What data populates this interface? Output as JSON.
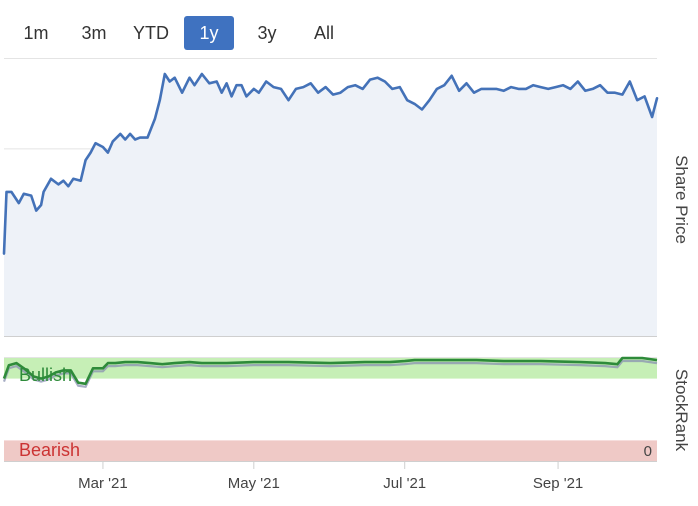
{
  "range_selector": {
    "buttons": [
      "1m",
      "3m",
      "YTD",
      "1y",
      "3y",
      "All"
    ],
    "selected": "1y"
  },
  "colors": {
    "price_line": "#4472b8",
    "price_fill": "#eef2f8",
    "stockrank_line": "#2e8b3a",
    "stockrank_shadow": "#8892b0",
    "bullish_band": "#c6efb6",
    "bearish_band": "#efc9c6",
    "bullish_text": "#2e8b3a",
    "bearish_text": "#cc3333",
    "active_tab": "#3f72c0"
  },
  "chart_data": [
    {
      "type": "area",
      "x_type": "date",
      "x_range": [
        "2021-01-20",
        "2021-10-11"
      ],
      "x_tick_labels": [
        "Mar '21",
        "May '21",
        "Jul '21",
        "Sep '21"
      ],
      "x_ticks": [
        "2021-03-01",
        "2021-05-01",
        "2021-07-01",
        "2021-09-01"
      ],
      "ylabel": "Share Price",
      "ylim": [
        0,
        74
      ],
      "yticks": [
        0,
        25,
        50
      ],
      "y_axis_side": "right",
      "grid": true,
      "series": [
        {
          "x": [
            "2021-01-20",
            "2021-01-21",
            "2021-01-23",
            "2021-01-26",
            "2021-01-28",
            "2021-01-31",
            "2021-02-02",
            "2021-02-04",
            "2021-02-05",
            "2021-02-08",
            "2021-02-11",
            "2021-02-13",
            "2021-02-15",
            "2021-02-17",
            "2021-02-20",
            "2021-02-22",
            "2021-02-24",
            "2021-02-26",
            "2021-03-01",
            "2021-03-03",
            "2021-03-05",
            "2021-03-08",
            "2021-03-10",
            "2021-03-12",
            "2021-03-14",
            "2021-03-16",
            "2021-03-19",
            "2021-03-22",
            "2021-03-24",
            "2021-03-26",
            "2021-03-28",
            "2021-03-30",
            "2021-04-02",
            "2021-04-05",
            "2021-04-07",
            "2021-04-10",
            "2021-04-13",
            "2021-04-16",
            "2021-04-18",
            "2021-04-20",
            "2021-04-22",
            "2021-04-24",
            "2021-04-26",
            "2021-04-28",
            "2021-05-01",
            "2021-05-03",
            "2021-05-06",
            "2021-05-09",
            "2021-05-12",
            "2021-05-15",
            "2021-05-18",
            "2021-05-21",
            "2021-05-24",
            "2021-05-27",
            "2021-05-30",
            "2021-06-02",
            "2021-06-05",
            "2021-06-08",
            "2021-06-11",
            "2021-06-14",
            "2021-06-17",
            "2021-06-20",
            "2021-06-23",
            "2021-06-26",
            "2021-06-29",
            "2021-07-02",
            "2021-07-05",
            "2021-07-08",
            "2021-07-11",
            "2021-07-14",
            "2021-07-17",
            "2021-07-20",
            "2021-07-23",
            "2021-07-26",
            "2021-07-29",
            "2021-08-01",
            "2021-08-04",
            "2021-08-07",
            "2021-08-10",
            "2021-08-13",
            "2021-08-16",
            "2021-08-19",
            "2021-08-22",
            "2021-08-25",
            "2021-08-28",
            "2021-08-31",
            "2021-09-03",
            "2021-09-06",
            "2021-09-09",
            "2021-09-12",
            "2021-09-15",
            "2021-09-18",
            "2021-09-21",
            "2021-09-24",
            "2021-09-27",
            "2021-09-30",
            "2021-10-03",
            "2021-10-06",
            "2021-10-09",
            "2021-10-11"
          ],
          "values": [
            22,
            38.5,
            38.5,
            35.5,
            38,
            37.5,
            33.5,
            35,
            38.5,
            42,
            40.5,
            41.5,
            40,
            42,
            41.5,
            47,
            49,
            51.5,
            50.5,
            49,
            52,
            54,
            52.5,
            54,
            52.5,
            53,
            53,
            58,
            63,
            70,
            68,
            69,
            65,
            69,
            67,
            70,
            67.5,
            68,
            65,
            67.5,
            64,
            67,
            67,
            64,
            66,
            65,
            68,
            66.5,
            66,
            63,
            66,
            66.5,
            67.5,
            65,
            66.5,
            64.5,
            65,
            66.5,
            67,
            66,
            68.5,
            69,
            68,
            66,
            66.5,
            63,
            62,
            60.5,
            63,
            66,
            67,
            69.5,
            65.5,
            67.5,
            65,
            66,
            66,
            66,
            65.5,
            66.5,
            66,
            66,
            67,
            66.5,
            66,
            66.5,
            67,
            66,
            68,
            65.5,
            66,
            67,
            65,
            65,
            64.5,
            68,
            63,
            64,
            58.5,
            63.5
          ]
        }
      ]
    },
    {
      "type": "line",
      "x_type": "date",
      "ylabel": "StockRank",
      "ylim": [
        0,
        100
      ],
      "yticks": [
        0
      ],
      "bands": [
        {
          "label": "Bullish",
          "from": 80,
          "to": 100
        },
        {
          "label": "Bearish",
          "from": 0,
          "to": 20
        }
      ],
      "series": [
        {
          "x": [
            "2021-01-20",
            "2021-01-22",
            "2021-01-25",
            "2021-01-28",
            "2021-02-01",
            "2021-02-04",
            "2021-02-07",
            "2021-02-10",
            "2021-02-13",
            "2021-02-16",
            "2021-02-19",
            "2021-02-22",
            "2021-02-25",
            "2021-03-01",
            "2021-03-03",
            "2021-03-06",
            "2021-03-10",
            "2021-03-15",
            "2021-03-20",
            "2021-03-25",
            "2021-03-30",
            "2021-04-05",
            "2021-04-10",
            "2021-04-20",
            "2021-05-01",
            "2021-05-15",
            "2021-06-01",
            "2021-06-15",
            "2021-06-25",
            "2021-07-01",
            "2021-07-05",
            "2021-07-15",
            "2021-07-30",
            "2021-08-10",
            "2021-08-25",
            "2021-09-10",
            "2021-09-20",
            "2021-09-25",
            "2021-09-27",
            "2021-10-05",
            "2021-10-11"
          ],
          "values": [
            80,
            93,
            95,
            90,
            82,
            80,
            82,
            86,
            88,
            88,
            76,
            75,
            90,
            90,
            95,
            95,
            96,
            96,
            95,
            94,
            95,
            96,
            95,
            95,
            96,
            96,
            95,
            96,
            96,
            97,
            98,
            98,
            98,
            97,
            97,
            96,
            95,
            94,
            100,
            100,
            98
          ]
        }
      ]
    }
  ]
}
